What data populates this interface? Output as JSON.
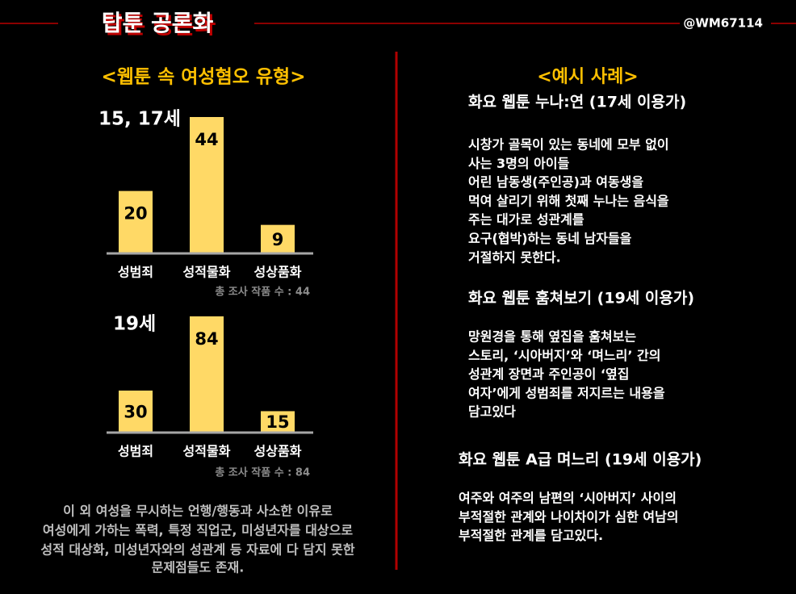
{
  "header": {
    "title": "탑툰 공론화",
    "handle": "@WM67114"
  },
  "left": {
    "title": "<웹툰 속 여성혐오 유형>",
    "footnote": [
      "이 외 여성을 무시하는 언행/행동과 사소한 이유로",
      "여성에게 가하는 폭력, 특정 직업군, 미성년자를 대상으로",
      "성적 대상화, 미성년자와의 성관계 등 자료에 다 담지 못한",
      "문제점들도 존재."
    ]
  },
  "chart_data": [
    {
      "type": "bar",
      "title": "15, 17세",
      "categories": [
        "성범죄",
        "성적물화",
        "성상품화"
      ],
      "values": [
        20,
        44,
        9
      ],
      "color": "#ffd966",
      "note": "총 조사 작품 수 : 44"
    },
    {
      "type": "bar",
      "title": "19세",
      "categories": [
        "성범죄",
        "성적물화",
        "성상품화"
      ],
      "values": [
        30,
        84,
        15
      ],
      "color": "#ffd966",
      "note": "총 조사 작품 수 : 84"
    }
  ],
  "right": {
    "title": "<예시 사례>",
    "cases": [
      {
        "heading": "화요 웹툰 누나:연 (17세 이용가)",
        "body": [
          "시창가 골목이 있는 동네에 모부 없이",
          "사는 3명의 아이들",
          "어린 남동생(주인공)과 여동생을",
          "먹여 살리기 위해 첫째 누나는 음식을",
          "주는 대가로 성관계를",
          "요구(협박)하는 동네 남자들을",
          "거절하지 못한다."
        ]
      },
      {
        "heading": "화요 웹툰 훔쳐보기 (19세 이용가)",
        "body": [
          "망원경을 통해 옆집을 훔쳐보는",
          "스토리, ‘시아버지’와 ‘며느리’ 간의",
          "성관계 장면과 주인공이 ‘옆집",
          "여자’에게 성범죄를 저지르는 내용을",
          "담고있다"
        ]
      },
      {
        "heading": "화요 웹툰 A급 며느리 (19세 이용가)",
        "body": [
          "여주와 여주의 남편의 ‘시아버지’ 사이의",
          "부적절한 관계와 나이차이가 심한 여남의",
          "부적절한 관계를 담고있다."
        ]
      }
    ]
  }
}
